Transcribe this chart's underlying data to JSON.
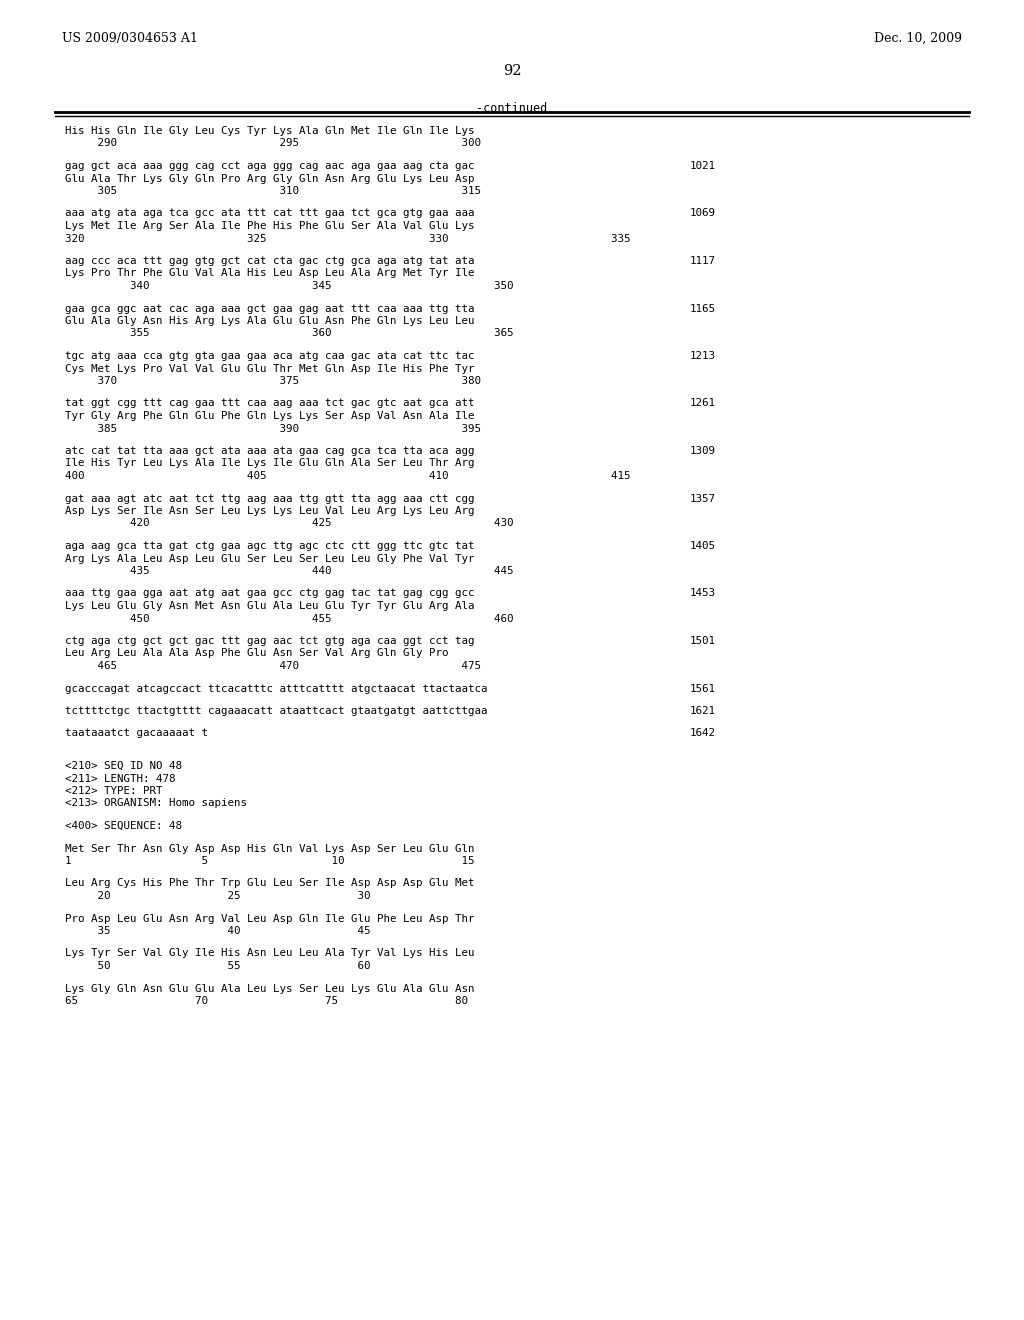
{
  "header_left": "US 2009/0304653 A1",
  "header_right": "Dec. 10, 2009",
  "page_number": "92",
  "continued_label": "-continued",
  "background_color": "#ffffff",
  "text_color": "#000000",
  "content": [
    {
      "t": "aa",
      "text": "His His Gln Ile Gly Leu Cys Tyr Lys Ala Gln Met Ile Gln Ile Lys"
    },
    {
      "t": "num",
      "text": "     290                         295                         300"
    },
    {
      "t": "gap"
    },
    {
      "t": "dna",
      "text": "gag gct aca aaa ggg cag cct aga ggg cag aac aga gaa aag cta gac",
      "nr": "1021"
    },
    {
      "t": "aa",
      "text": "Glu Ala Thr Lys Gly Gln Pro Arg Gly Gln Asn Arg Glu Lys Leu Asp"
    },
    {
      "t": "num",
      "text": "     305                         310                         315"
    },
    {
      "t": "gap"
    },
    {
      "t": "dna",
      "text": "aaa atg ata aga tca gcc ata ttt cat ttt gaa tct gca gtg gaa aaa",
      "nr": "1069"
    },
    {
      "t": "aa",
      "text": "Lys Met Ile Arg Ser Ala Ile Phe His Phe Glu Ser Ala Val Glu Lys"
    },
    {
      "t": "num",
      "text": "320                         325                         330                         335"
    },
    {
      "t": "gap"
    },
    {
      "t": "dna",
      "text": "aag ccc aca ttt gag gtg gct cat cta gac ctg gca aga atg tat ata",
      "nr": "1117"
    },
    {
      "t": "aa",
      "text": "Lys Pro Thr Phe Glu Val Ala His Leu Asp Leu Ala Arg Met Tyr Ile"
    },
    {
      "t": "num",
      "text": "          340                         345                         350"
    },
    {
      "t": "gap"
    },
    {
      "t": "dna",
      "text": "gaa gca ggc aat cac aga aaa gct gaa gag aat ttt caa aaa ttg tta",
      "nr": "1165"
    },
    {
      "t": "aa",
      "text": "Glu Ala Gly Asn His Arg Lys Ala Glu Glu Asn Phe Gln Lys Leu Leu"
    },
    {
      "t": "num",
      "text": "          355                         360                         365"
    },
    {
      "t": "gap"
    },
    {
      "t": "dna",
      "text": "tgc atg aaa cca gtg gta gaa gaa aca atg caa gac ata cat ttc tac",
      "nr": "1213"
    },
    {
      "t": "aa",
      "text": "Cys Met Lys Pro Val Val Glu Glu Thr Met Gln Asp Ile His Phe Tyr"
    },
    {
      "t": "num",
      "text": "     370                         375                         380"
    },
    {
      "t": "gap"
    },
    {
      "t": "dna",
      "text": "tat ggt cgg ttt cag gaa ttt caa aag aaa tct gac gtc aat gca att",
      "nr": "1261"
    },
    {
      "t": "aa",
      "text": "Tyr Gly Arg Phe Gln Glu Phe Gln Lys Lys Ser Asp Val Asn Ala Ile"
    },
    {
      "t": "num",
      "text": "     385                         390                         395"
    },
    {
      "t": "gap"
    },
    {
      "t": "dna",
      "text": "atc cat tat tta aaa gct ata aaa ata gaa cag gca tca tta aca agg",
      "nr": "1309"
    },
    {
      "t": "aa",
      "text": "Ile His Tyr Leu Lys Ala Ile Lys Ile Glu Gln Ala Ser Leu Thr Arg"
    },
    {
      "t": "num",
      "text": "400                         405                         410                         415"
    },
    {
      "t": "gap"
    },
    {
      "t": "dna",
      "text": "gat aaa agt atc aat tct ttg aag aaa ttg gtt tta agg aaa ctt cgg",
      "nr": "1357"
    },
    {
      "t": "aa",
      "text": "Asp Lys Ser Ile Asn Ser Leu Lys Lys Leu Val Leu Arg Lys Leu Arg"
    },
    {
      "t": "num",
      "text": "          420                         425                         430"
    },
    {
      "t": "gap"
    },
    {
      "t": "dna",
      "text": "aga aag gca tta gat ctg gaa agc ttg agc ctc ctt ggg ttc gtc tat",
      "nr": "1405"
    },
    {
      "t": "aa",
      "text": "Arg Lys Ala Leu Asp Leu Glu Ser Leu Ser Leu Leu Gly Phe Val Tyr"
    },
    {
      "t": "num",
      "text": "          435                         440                         445"
    },
    {
      "t": "gap"
    },
    {
      "t": "dna",
      "text": "aaa ttg gaa gga aat atg aat gaa gcc ctg gag tac tat gag cgg gcc",
      "nr": "1453"
    },
    {
      "t": "aa",
      "text": "Lys Leu Glu Gly Asn Met Asn Glu Ala Leu Glu Tyr Tyr Glu Arg Ala"
    },
    {
      "t": "num",
      "text": "          450                         455                         460"
    },
    {
      "t": "gap"
    },
    {
      "t": "dna",
      "text": "ctg aga ctg gct gct gac ttt gag aac tct gtg aga caa ggt cct tag",
      "nr": "1501"
    },
    {
      "t": "aa",
      "text": "Leu Arg Leu Ala Ala Asp Phe Glu Asn Ser Val Arg Gln Gly Pro"
    },
    {
      "t": "num",
      "text": "     465                         470                         475"
    },
    {
      "t": "gap"
    },
    {
      "t": "dna",
      "text": "gcacccagat atcagccact ttcacatttc atttcatttt atgctaacat ttactaatca",
      "nr": "1561"
    },
    {
      "t": "gap"
    },
    {
      "t": "dna",
      "text": "tcttttctgc ttactgtttt cagaaacatt ataattcact gtaatgatgt aattcttgaa",
      "nr": "1621"
    },
    {
      "t": "gap"
    },
    {
      "t": "dna",
      "text": "taataaatct gacaaaaat t",
      "nr": "1642"
    },
    {
      "t": "gap"
    },
    {
      "t": "gap"
    },
    {
      "t": "meta",
      "text": "<210> SEQ ID NO 48"
    },
    {
      "t": "meta",
      "text": "<211> LENGTH: 478"
    },
    {
      "t": "meta",
      "text": "<212> TYPE: PRT"
    },
    {
      "t": "meta",
      "text": "<213> ORGANISM: Homo sapiens"
    },
    {
      "t": "gap"
    },
    {
      "t": "meta",
      "text": "<400> SEQUENCE: 48"
    },
    {
      "t": "gap"
    },
    {
      "t": "aa",
      "text": "Met Ser Thr Asn Gly Asp Asp His Gln Val Lys Asp Ser Leu Glu Gln"
    },
    {
      "t": "num",
      "text": "1                    5                   10                  15"
    },
    {
      "t": "gap"
    },
    {
      "t": "aa",
      "text": "Leu Arg Cys His Phe Thr Trp Glu Leu Ser Ile Asp Asp Asp Glu Met"
    },
    {
      "t": "num",
      "text": "     20                  25                  30"
    },
    {
      "t": "gap"
    },
    {
      "t": "aa",
      "text": "Pro Asp Leu Glu Asn Arg Val Leu Asp Gln Ile Glu Phe Leu Asp Thr"
    },
    {
      "t": "num",
      "text": "     35                  40                  45"
    },
    {
      "t": "gap"
    },
    {
      "t": "aa",
      "text": "Lys Tyr Ser Val Gly Ile His Asn Leu Leu Ala Tyr Val Lys His Leu"
    },
    {
      "t": "num",
      "text": "     50                  55                  60"
    },
    {
      "t": "gap"
    },
    {
      "t": "aa",
      "text": "Lys Gly Gln Asn Glu Glu Ala Leu Lys Ser Leu Lys Glu Ala Glu Asn"
    },
    {
      "t": "num",
      "text": "65                  70                  75                  80"
    }
  ]
}
